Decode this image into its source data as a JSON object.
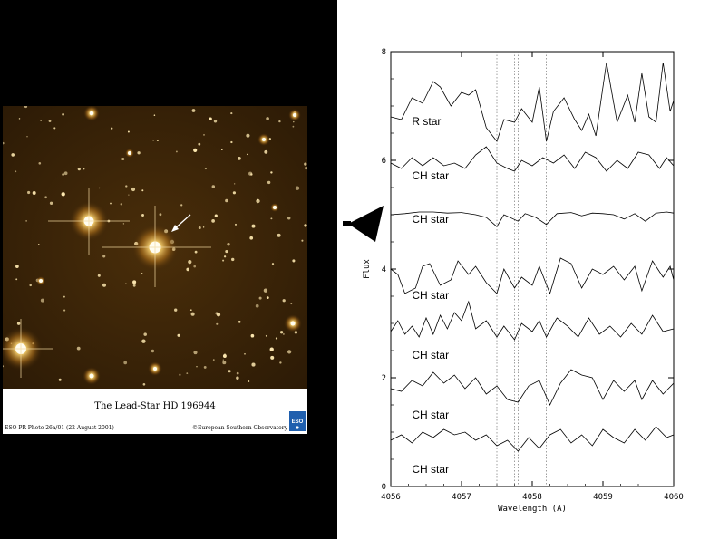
{
  "photo": {
    "caption": "The Lead-Star HD 196944",
    "credit_left": "ESO PR Photo 26a/01 (22 August 2001)",
    "credit_right": "©European Southern Observatory",
    "logo_text": "ESO"
  },
  "chart_data": {
    "type": "line",
    "xlabel": "Wavelength (A)",
    "ylabel": "Flux",
    "xlim": [
      4056,
      4060
    ],
    "ylim": [
      0,
      8
    ],
    "xticks": [
      "4056",
      "4057",
      "4058",
      "4059",
      "4060"
    ],
    "yticks": [
      "0",
      "2",
      "4",
      "6",
      "8"
    ],
    "reference_lines": [
      4057.5,
      4057.75,
      4057.8,
      4058.2
    ],
    "series": [
      {
        "name": "R star",
        "label_y": 6.65,
        "values": [
          [
            4056.0,
            6.8
          ],
          [
            4056.15,
            6.75
          ],
          [
            4056.3,
            7.15
          ],
          [
            4056.45,
            7.05
          ],
          [
            4056.6,
            7.45
          ],
          [
            4056.7,
            7.35
          ],
          [
            4056.85,
            7.0
          ],
          [
            4057.0,
            7.25
          ],
          [
            4057.1,
            7.2
          ],
          [
            4057.2,
            7.3
          ],
          [
            4057.35,
            6.6
          ],
          [
            4057.5,
            6.35
          ],
          [
            4057.6,
            6.75
          ],
          [
            4057.75,
            6.7
          ],
          [
            4057.85,
            6.95
          ],
          [
            4058.0,
            6.7
          ],
          [
            4058.1,
            7.35
          ],
          [
            4058.2,
            6.35
          ],
          [
            4058.3,
            6.9
          ],
          [
            4058.45,
            7.15
          ],
          [
            4058.6,
            6.75
          ],
          [
            4058.7,
            6.55
          ],
          [
            4058.8,
            6.85
          ],
          [
            4058.9,
            6.45
          ],
          [
            4059.05,
            7.8
          ],
          [
            4059.2,
            6.7
          ],
          [
            4059.35,
            7.2
          ],
          [
            4059.45,
            6.7
          ],
          [
            4059.55,
            7.6
          ],
          [
            4059.65,
            6.8
          ],
          [
            4059.75,
            6.7
          ],
          [
            4059.85,
            7.8
          ],
          [
            4059.95,
            6.9
          ],
          [
            4060.0,
            7.1
          ]
        ]
      },
      {
        "name": "CH star",
        "label_y": 5.65,
        "values": [
          [
            4056.0,
            5.95
          ],
          [
            4056.15,
            5.85
          ],
          [
            4056.3,
            6.05
          ],
          [
            4056.45,
            5.9
          ],
          [
            4056.6,
            6.05
          ],
          [
            4056.75,
            5.9
          ],
          [
            4056.9,
            5.95
          ],
          [
            4057.05,
            5.85
          ],
          [
            4057.2,
            6.1
          ],
          [
            4057.35,
            6.25
          ],
          [
            4057.5,
            5.95
          ],
          [
            4057.65,
            5.85
          ],
          [
            4057.75,
            5.8
          ],
          [
            4057.85,
            6.0
          ],
          [
            4058.0,
            5.9
          ],
          [
            4058.15,
            6.05
          ],
          [
            4058.3,
            5.95
          ],
          [
            4058.45,
            6.1
          ],
          [
            4058.6,
            5.85
          ],
          [
            4058.75,
            6.15
          ],
          [
            4058.9,
            6.05
          ],
          [
            4059.05,
            5.8
          ],
          [
            4059.2,
            6.0
          ],
          [
            4059.35,
            5.85
          ],
          [
            4059.5,
            6.15
          ],
          [
            4059.65,
            6.1
          ],
          [
            4059.8,
            5.85
          ],
          [
            4059.9,
            6.05
          ],
          [
            4060.0,
            5.9
          ]
        ]
      },
      {
        "name": "CH star",
        "label_y": 4.85,
        "values": [
          [
            4056.0,
            5.0
          ],
          [
            4056.2,
            5.02
          ],
          [
            4056.4,
            5.05
          ],
          [
            4056.6,
            5.05
          ],
          [
            4056.8,
            5.03
          ],
          [
            4057.0,
            5.04
          ],
          [
            4057.2,
            5.0
          ],
          [
            4057.35,
            4.95
          ],
          [
            4057.5,
            4.78
          ],
          [
            4057.6,
            5.0
          ],
          [
            4057.8,
            4.88
          ],
          [
            4057.9,
            5.02
          ],
          [
            4058.05,
            4.95
          ],
          [
            4058.2,
            4.82
          ],
          [
            4058.35,
            5.02
          ],
          [
            4058.55,
            5.04
          ],
          [
            4058.7,
            4.98
          ],
          [
            4058.85,
            5.03
          ],
          [
            4059.0,
            5.02
          ],
          [
            4059.15,
            5.0
          ],
          [
            4059.3,
            4.92
          ],
          [
            4059.45,
            5.02
          ],
          [
            4059.6,
            4.88
          ],
          [
            4059.75,
            5.03
          ],
          [
            4059.9,
            5.05
          ],
          [
            4060.0,
            5.03
          ]
        ]
      },
      {
        "name": "CH star",
        "label_y": 3.45,
        "values": [
          [
            4056.0,
            4.0
          ],
          [
            4056.1,
            3.9
          ],
          [
            4056.2,
            3.55
          ],
          [
            4056.35,
            3.65
          ],
          [
            4056.45,
            4.05
          ],
          [
            4056.55,
            4.1
          ],
          [
            4056.7,
            3.7
          ],
          [
            4056.85,
            3.8
          ],
          [
            4056.95,
            4.15
          ],
          [
            4057.1,
            3.9
          ],
          [
            4057.2,
            4.05
          ],
          [
            4057.35,
            3.75
          ],
          [
            4057.5,
            3.55
          ],
          [
            4057.6,
            4.0
          ],
          [
            4057.75,
            3.65
          ],
          [
            4057.85,
            3.85
          ],
          [
            4058.0,
            3.7
          ],
          [
            4058.1,
            4.05
          ],
          [
            4058.25,
            3.55
          ],
          [
            4058.4,
            4.2
          ],
          [
            4058.55,
            4.1
          ],
          [
            4058.7,
            3.65
          ],
          [
            4058.85,
            4.0
          ],
          [
            4059.0,
            3.9
          ],
          [
            4059.15,
            4.05
          ],
          [
            4059.3,
            3.8
          ],
          [
            4059.45,
            4.05
          ],
          [
            4059.55,
            3.6
          ],
          [
            4059.7,
            4.15
          ],
          [
            4059.85,
            3.85
          ],
          [
            4059.95,
            4.05
          ],
          [
            4060.0,
            3.8
          ]
        ]
      },
      {
        "name": "CH star",
        "label_y": 2.35,
        "values": [
          [
            4056.0,
            2.85
          ],
          [
            4056.1,
            3.05
          ],
          [
            4056.2,
            2.8
          ],
          [
            4056.3,
            2.95
          ],
          [
            4056.4,
            2.75
          ],
          [
            4056.5,
            3.1
          ],
          [
            4056.6,
            2.8
          ],
          [
            4056.7,
            3.15
          ],
          [
            4056.8,
            2.9
          ],
          [
            4056.9,
            3.2
          ],
          [
            4057.0,
            3.05
          ],
          [
            4057.1,
            3.4
          ],
          [
            4057.2,
            2.9
          ],
          [
            4057.35,
            3.05
          ],
          [
            4057.5,
            2.75
          ],
          [
            4057.6,
            2.95
          ],
          [
            4057.75,
            2.7
          ],
          [
            4057.85,
            3.0
          ],
          [
            4058.0,
            2.85
          ],
          [
            4058.1,
            3.05
          ],
          [
            4058.2,
            2.75
          ],
          [
            4058.35,
            3.1
          ],
          [
            4058.5,
            2.95
          ],
          [
            4058.65,
            2.75
          ],
          [
            4058.8,
            3.1
          ],
          [
            4058.95,
            2.8
          ],
          [
            4059.1,
            2.95
          ],
          [
            4059.25,
            2.75
          ],
          [
            4059.4,
            3.0
          ],
          [
            4059.55,
            2.8
          ],
          [
            4059.7,
            3.15
          ],
          [
            4059.85,
            2.85
          ],
          [
            4060.0,
            2.9
          ]
        ]
      },
      {
        "name": "CH star",
        "label_y": 1.25,
        "values": [
          [
            4056.0,
            1.8
          ],
          [
            4056.15,
            1.75
          ],
          [
            4056.3,
            1.95
          ],
          [
            4056.45,
            1.85
          ],
          [
            4056.6,
            2.1
          ],
          [
            4056.75,
            1.9
          ],
          [
            4056.9,
            2.05
          ],
          [
            4057.05,
            1.8
          ],
          [
            4057.2,
            2.0
          ],
          [
            4057.35,
            1.7
          ],
          [
            4057.5,
            1.85
          ],
          [
            4057.65,
            1.6
          ],
          [
            4057.8,
            1.55
          ],
          [
            4057.95,
            1.85
          ],
          [
            4058.1,
            1.95
          ],
          [
            4058.25,
            1.5
          ],
          [
            4058.4,
            1.9
          ],
          [
            4058.55,
            2.15
          ],
          [
            4058.7,
            2.05
          ],
          [
            4058.85,
            2.0
          ],
          [
            4059.0,
            1.6
          ],
          [
            4059.15,
            1.95
          ],
          [
            4059.3,
            1.75
          ],
          [
            4059.45,
            1.95
          ],
          [
            4059.55,
            1.6
          ],
          [
            4059.7,
            1.95
          ],
          [
            4059.85,
            1.7
          ],
          [
            4060.0,
            1.9
          ]
        ]
      },
      {
        "name": "CH star",
        "label_y": 0.25,
        "values": [
          [
            4056.0,
            0.85
          ],
          [
            4056.15,
            0.95
          ],
          [
            4056.3,
            0.8
          ],
          [
            4056.45,
            1.0
          ],
          [
            4056.6,
            0.9
          ],
          [
            4056.75,
            1.05
          ],
          [
            4056.9,
            0.95
          ],
          [
            4057.05,
            1.0
          ],
          [
            4057.2,
            0.85
          ],
          [
            4057.35,
            0.95
          ],
          [
            4057.5,
            0.75
          ],
          [
            4057.65,
            0.85
          ],
          [
            4057.8,
            0.65
          ],
          [
            4057.95,
            0.9
          ],
          [
            4058.1,
            0.7
          ],
          [
            4058.25,
            0.95
          ],
          [
            4058.4,
            1.05
          ],
          [
            4058.55,
            0.8
          ],
          [
            4058.7,
            0.95
          ],
          [
            4058.85,
            0.75
          ],
          [
            4059.0,
            1.05
          ],
          [
            4059.15,
            0.9
          ],
          [
            4059.3,
            0.8
          ],
          [
            4059.45,
            1.05
          ],
          [
            4059.6,
            0.85
          ],
          [
            4059.75,
            1.1
          ],
          [
            4059.9,
            0.9
          ],
          [
            4060.0,
            0.95
          ]
        ]
      }
    ]
  }
}
